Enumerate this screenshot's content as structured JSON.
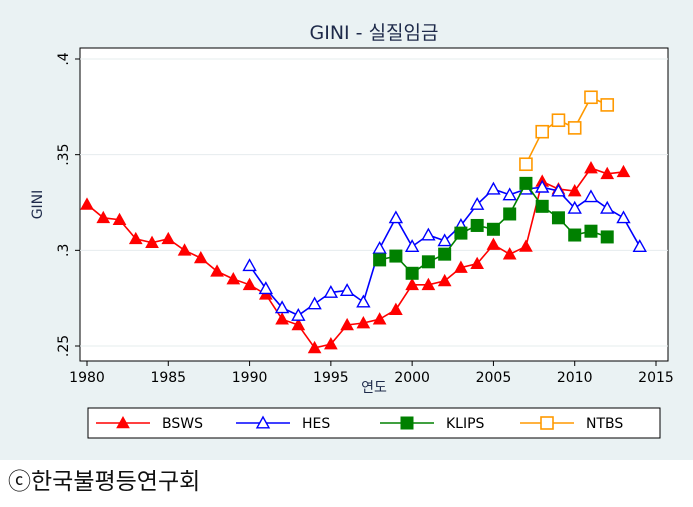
{
  "caption": "ⓒ한국불평등연구회",
  "chart_data": {
    "type": "line",
    "title": "GINI - 실질임금",
    "xlabel": "연도",
    "ylabel": "GINI",
    "xlim": [
      1980,
      2015
    ],
    "ylim": [
      0.25,
      0.4
    ],
    "x_ticks": [
      1980,
      1985,
      1990,
      1995,
      2000,
      2005,
      2010,
      2015
    ],
    "x_tick_labels": [
      "1980",
      "1985",
      "1990",
      "1995",
      "2000",
      "2005",
      "2010",
      "2015"
    ],
    "y_ticks": [
      0.25,
      0.3,
      0.35,
      0.4
    ],
    "y_tick_labels": [
      ".25",
      ".3",
      ".35",
      ".4"
    ],
    "grid": "horizontal",
    "legend": "bottom",
    "series": [
      {
        "name": "BSWS",
        "color": "#ff0000",
        "marker": "filled-triangle",
        "x": [
          1980,
          1981,
          1982,
          1983,
          1984,
          1985,
          1986,
          1987,
          1988,
          1989,
          1990,
          1991,
          1992,
          1993,
          1994,
          1995,
          1996,
          1997,
          1998,
          1999,
          2000,
          2001,
          2002,
          2003,
          2004,
          2005,
          2006,
          2007,
          2008,
          2009,
          2010,
          2011,
          2012,
          2013
        ],
        "values": [
          0.324,
          0.317,
          0.316,
          0.306,
          0.304,
          0.306,
          0.3,
          0.296,
          0.289,
          0.285,
          0.282,
          0.277,
          0.264,
          0.261,
          0.249,
          0.251,
          0.261,
          0.262,
          0.264,
          0.269,
          0.282,
          0.282,
          0.284,
          0.291,
          0.293,
          0.303,
          0.298,
          0.302,
          0.336,
          0.332,
          0.331,
          0.343,
          0.34,
          0.341
        ]
      },
      {
        "name": "HES",
        "color": "#0000ff",
        "marker": "hollow-triangle",
        "x": [
          1990,
          1991,
          1992,
          1993,
          1994,
          1995,
          1996,
          1997,
          1998,
          1999,
          2000,
          2001,
          2002,
          2003,
          2004,
          2005,
          2006,
          2007,
          2008,
          2009,
          2010,
          2011,
          2012,
          2013,
          2014
        ],
        "values": [
          0.292,
          0.28,
          0.27,
          0.266,
          0.272,
          0.278,
          0.279,
          0.273,
          0.301,
          0.317,
          0.302,
          0.308,
          0.305,
          0.313,
          0.324,
          0.332,
          0.329,
          0.332,
          0.333,
          0.331,
          0.322,
          0.328,
          0.322,
          0.317,
          0.302
        ]
      },
      {
        "name": "KLIPS",
        "color": "#008000",
        "marker": "filled-square",
        "x": [
          1998,
          1999,
          2000,
          2001,
          2002,
          2003,
          2004,
          2005,
          2006,
          2007,
          2008,
          2009,
          2010,
          2011,
          2012
        ],
        "values": [
          0.295,
          0.297,
          0.288,
          0.294,
          0.298,
          0.309,
          0.313,
          0.311,
          0.319,
          0.335,
          0.323,
          0.317,
          0.308,
          0.31,
          0.307
        ]
      },
      {
        "name": "NTBS",
        "color": "#ff9900",
        "marker": "hollow-square",
        "x": [
          2007,
          2008,
          2009,
          2010,
          2011,
          2012
        ],
        "values": [
          0.345,
          0.362,
          0.368,
          0.364,
          0.38,
          0.376
        ]
      }
    ]
  }
}
